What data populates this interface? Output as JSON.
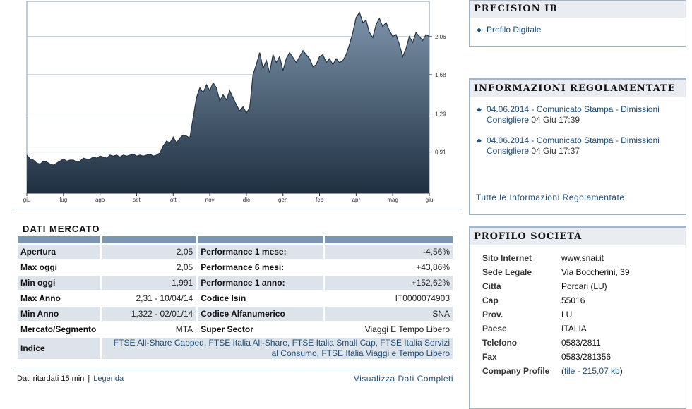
{
  "chart": {
    "months": [
      "giu",
      "lug",
      "ago",
      "set",
      "ott",
      "nov",
      "dic",
      "gen",
      "feb",
      "apr",
      "mag",
      "giu"
    ],
    "y_ticks": [
      "2,06",
      "1,68",
      "1,29",
      "0,91"
    ],
    "y_min": 0.5,
    "y_max": 2.41,
    "colors": {
      "top": "#7d93aa",
      "bottom": "#1f3041",
      "line": "#223140",
      "grid": "#9cb3c9"
    },
    "points": [
      0.88,
      0.84,
      0.83,
      0.8,
      0.79,
      0.82,
      0.81,
      0.79,
      0.78,
      0.8,
      0.82,
      0.84,
      0.82,
      0.83,
      0.83,
      0.81,
      0.82,
      0.85,
      0.84,
      0.84,
      0.86,
      0.85,
      0.87,
      0.86,
      0.85,
      0.88,
      0.87,
      0.88,
      0.86,
      0.88,
      0.87,
      0.88,
      0.89,
      0.87,
      0.88,
      0.87,
      0.88,
      0.89,
      0.87,
      0.88,
      0.9,
      0.97,
      1.02,
      1.0,
      1.06,
      1.0,
      1.05,
      1.08,
      1.07,
      1.05,
      1.25,
      1.45,
      1.55,
      1.5,
      1.58,
      1.52,
      1.6,
      1.55,
      1.42,
      1.48,
      1.43,
      1.52,
      1.45,
      1.38,
      1.32,
      1.36,
      1.3,
      1.35,
      1.68,
      1.78,
      1.9,
      1.74,
      1.82,
      1.7,
      1.88,
      1.8,
      1.86,
      1.72,
      1.84,
      1.9,
      1.85,
      1.8,
      1.86,
      1.92,
      1.88,
      1.84,
      1.76,
      1.78,
      1.86,
      1.88,
      1.8,
      1.84,
      1.78,
      1.84,
      1.8,
      1.82,
      1.88,
      1.98,
      2.1,
      2.25,
      2.3,
      2.2,
      2.22,
      2.1,
      2.05,
      2.18,
      2.24,
      2.16,
      2.2,
      2.12,
      2.06,
      2.08,
      1.98,
      1.86,
      1.94,
      2.06,
      2.0,
      2.1,
      2.06,
      2.02,
      2.08,
      2.06
    ]
  },
  "dati_mercato": {
    "title": "DATI MERCATO",
    "rows": [
      {
        "l1": "Apertura",
        "v1": "2,05",
        "l2": "Performance 1 mese:",
        "v2": "-4,56%"
      },
      {
        "l1": "Max oggi",
        "v1": "2,05",
        "l2": "Performance 6 mesi:",
        "v2": "+43,86%"
      },
      {
        "l1": "Min oggi",
        "v1": "1,991",
        "l2": "Performance 1 anno:",
        "v2": "+152,62%"
      },
      {
        "l1": "Max Anno",
        "v1": "2,31 - 10/04/14",
        "l2": "Codice Isin",
        "v2": "IT0000074903"
      },
      {
        "l1": "Min Anno",
        "v1": "1,322 - 02/01/14",
        "l2": "Codice Alfanumerico",
        "v2": "SNA"
      },
      {
        "l1": "Mercato/Segmento",
        "v1": "MTA",
        "l2": "Super Sector",
        "v2": "Viaggi E Tempo Libero"
      }
    ],
    "indice_label": "Indice",
    "indice_links": [
      "FTSE All-Share Capped",
      "FTSE Italia All-Share",
      "FTSE Italia Small Cap",
      "FTSE Italia Servizi al Consumo",
      "FTSE Italia Viaggi e Tempo Libero"
    ],
    "footnote": "Dati ritardati 15 min",
    "legenda": "Legenda",
    "visualizza": "Visualizza Dati Completi"
  },
  "precision_ir": {
    "title": "PRECISION IR",
    "items": [
      "Profilo Digitale"
    ]
  },
  "info_regolamentate": {
    "title": "INFORMAZIONI REGOLAMENTATE",
    "items": [
      {
        "link": "04.06.2014 - Comunicato Stampa - Dimissioni Consigliere",
        "date": "04 Giu 17:39"
      },
      {
        "link": "04.06.2014 - Comunicato Stampa - Dimissioni Consigliere",
        "date": "04 Giu 17:37"
      }
    ],
    "all_link": "Tutte le Informazioni Regolamentate"
  },
  "profilo": {
    "title": "PROFILO SOCIETÀ",
    "sito_label": "Sito Internet",
    "sito": "www.snai.it",
    "sede_label": "Sede Legale",
    "sede": "Via Boccherini, 39",
    "citta_label": "Città",
    "citta": "Porcari (LU)",
    "cap_label": "Cap",
    "cap": "55016",
    "prov_label": "Prov.",
    "prov": "LU",
    "paese_label": "Paese",
    "paese": "ITALIA",
    "tel_label": "Telefono",
    "tel": "0583/2811",
    "fax_label": "Fax",
    "fax": "0583/281356",
    "cp_label": "Company Profile",
    "cp_open": "(",
    "cp_link": "file - 215,07 kb",
    "cp_close": ")"
  }
}
